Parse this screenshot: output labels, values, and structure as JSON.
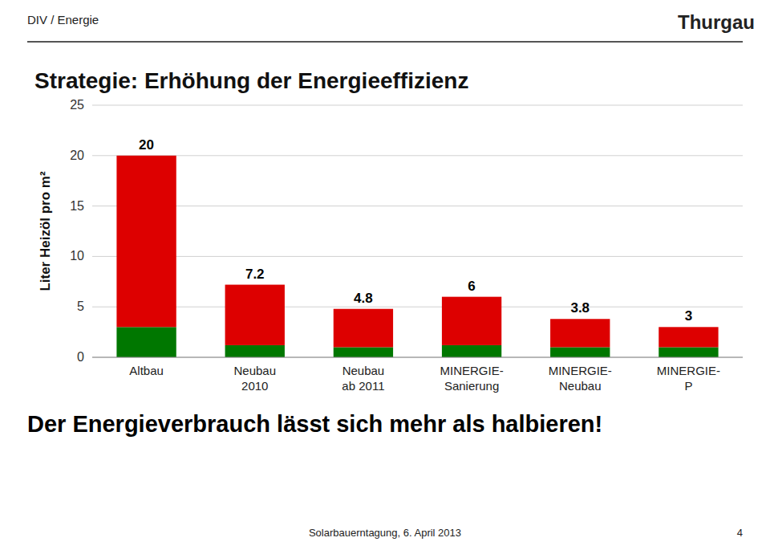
{
  "chart_data": {
    "type": "bar",
    "stacked": true,
    "title": "Strategie: Erhöhung der Energieeffizienz",
    "ylabel": "Liter Heizöl pro m²",
    "categories": [
      "Altbau",
      "Neubau\n2010",
      "Neubau\nab 2011",
      "MINERGIE-\nSanierung",
      "MINERGIE-\nNeubau",
      "MINERGIE-\nP"
    ],
    "series": [
      {
        "color": "#007700",
        "values": [
          3.0,
          1.2,
          1.0,
          1.2,
          1.0,
          1.0
        ]
      },
      {
        "color": "#dd0000",
        "values": [
          17,
          6,
          3.8,
          4.8,
          2.8,
          2
        ]
      }
    ],
    "totals": [
      20,
      7.2,
      4.8,
      6,
      3.8,
      3
    ],
    "ylim": [
      0,
      25
    ],
    "yticks": [
      0,
      5,
      10,
      15,
      20,
      25
    ],
    "grid": true,
    "annotations": {
      "header_left": "DIV / Energie",
      "header_right": "Thurgau",
      "bottom_text": "Der Energieverbrauch lässt sich mehr als halbieren!",
      "footer": "Solarbauerntagung, 6. April 2013",
      "page_number": "4"
    }
  }
}
